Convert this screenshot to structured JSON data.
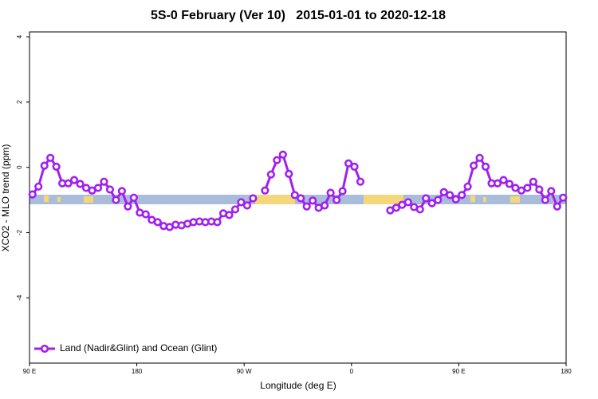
{
  "chart_data": {
    "type": "line",
    "title": "5S-0 February (Ver 10)   2015-01-01 to 2020-12-18",
    "xlabel": "Longitude (deg E)",
    "ylabel": "XCO2 - MLO trend (ppm)",
    "xlim": [
      90,
      540
    ],
    "ylim": [
      -6,
      4.15
    ],
    "xticks": [
      {
        "value": 90,
        "label": "90 E"
      },
      {
        "value": 180,
        "label": "180"
      },
      {
        "value": 270,
        "label": "90 W"
      },
      {
        "value": 360,
        "label": "0"
      },
      {
        "value": 450,
        "label": "90 E"
      },
      {
        "value": 540,
        "label": "180"
      }
    ],
    "yticks": [
      -4,
      -2,
      0,
      2,
      4
    ],
    "legend": "bottomleft",
    "x": [
      92.5,
      97.5,
      102.5,
      107.5,
      112.5,
      117.5,
      122.5,
      127.5,
      132.5,
      137.5,
      142.5,
      147.5,
      152.5,
      157.5,
      162.5,
      167.5,
      172.5,
      177.5,
      182.5,
      187.5,
      192.5,
      197.5,
      202.5,
      207.5,
      212.5,
      217.5,
      222.5,
      227.5,
      232.5,
      237.5,
      242.5,
      247.5,
      252.5,
      257.5,
      262.5,
      267.5,
      272.5,
      277.5,
      282.5,
      287.5,
      292.5,
      297.5,
      302.5,
      307.5,
      312.5,
      317.5,
      322.5,
      327.5,
      332.5,
      337.5,
      342.5,
      347.5,
      352.5,
      357.5,
      362.5,
      367.5,
      372.5,
      377.5,
      382.5,
      387.5,
      392.5,
      397.5,
      402.5,
      407.5,
      412.5,
      417.5,
      422.5,
      427.5,
      432.5,
      437.5,
      442.5,
      447.5,
      452.5,
      457.5,
      462.5,
      467.5,
      472.5,
      477.5,
      482.5,
      487.5,
      492.5,
      497.5,
      502.5,
      507.5,
      512.5,
      517.5,
      522.5,
      527.5,
      532.5,
      537.5
    ],
    "series": [
      {
        "name": "Land (Nadir&Glint) and Ocean (Glint)",
        "color": "#a020f0",
        "values": [
          -0.83,
          -0.59,
          0.05,
          0.29,
          0.02,
          -0.49,
          -0.49,
          -0.39,
          -0.51,
          -0.63,
          -0.71,
          -0.63,
          -0.44,
          -0.68,
          -1.0,
          -0.73,
          -1.2,
          -0.93,
          -1.39,
          -1.44,
          -1.61,
          -1.68,
          -1.8,
          -1.83,
          -1.76,
          -1.78,
          -1.73,
          -1.68,
          -1.66,
          -1.68,
          -1.66,
          -1.68,
          -1.41,
          -1.46,
          -1.29,
          -1.07,
          -1.17,
          -0.95,
          null,
          -0.71,
          -0.22,
          0.22,
          0.39,
          -0.2,
          -0.85,
          -0.95,
          -1.2,
          -1.02,
          -1.24,
          -1.17,
          -0.78,
          -1.0,
          -0.73,
          0.12,
          0.02,
          -0.44,
          null,
          null,
          null,
          null,
          -1.32,
          -1.24,
          -1.15,
          -1.07,
          -1.22,
          -1.29,
          -0.95,
          -1.1,
          -1.0,
          -0.76,
          -0.85,
          -0.98,
          -0.85,
          -0.59,
          0.05,
          0.29,
          0.02,
          -0.49,
          -0.49,
          -0.39,
          -0.51,
          -0.63,
          -0.71,
          -0.63,
          -0.44,
          -0.68,
          -1.0,
          -0.73,
          -1.2,
          -0.93
        ]
      }
    ]
  }
}
